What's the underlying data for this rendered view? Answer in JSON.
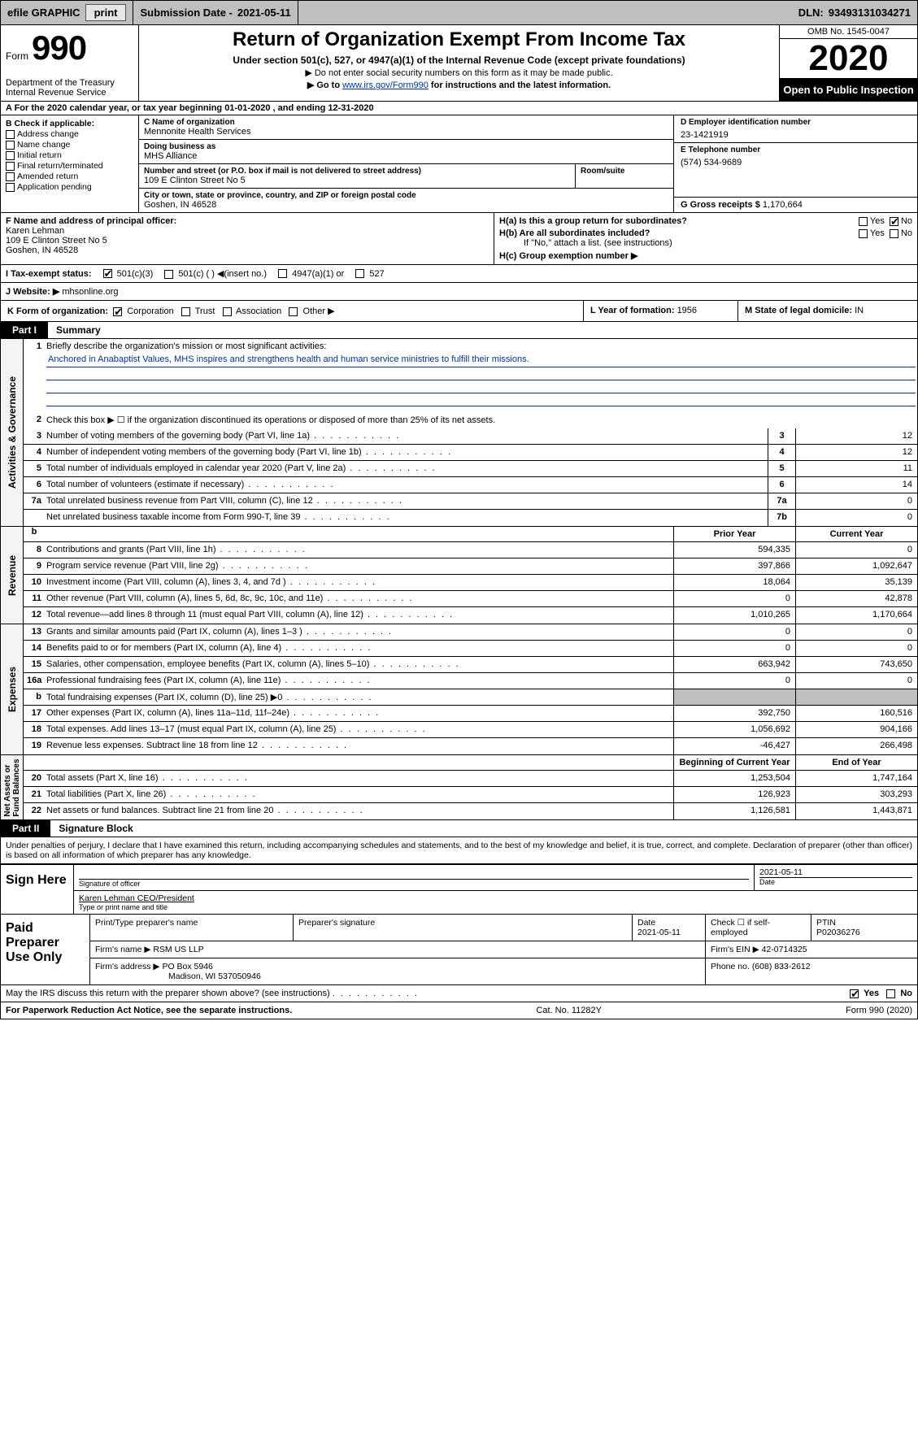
{
  "topbar": {
    "efile": "efile GRAPHIC",
    "print": "print",
    "subdate_label": "Submission Date - ",
    "subdate": "2021-05-11",
    "dln_label": "DLN: ",
    "dln": "93493131034271"
  },
  "header": {
    "form_small": "Form",
    "form_big": "990",
    "dept": "Department of the Treasury\nInternal Revenue Service",
    "title": "Return of Organization Exempt From Income Tax",
    "subtitle": "Under section 501(c), 527, or 4947(a)(1) of the Internal Revenue Code (except private foundations)",
    "note1": "▶ Do not enter social security numbers on this form as it may be made public.",
    "note2_pre": "▶ Go to ",
    "note2_link": "www.irs.gov/Form990",
    "note2_post": " for instructions and the latest information.",
    "omb": "OMB No. 1545-0047",
    "year": "2020",
    "inspection": "Open to Public Inspection"
  },
  "rowA": "A   For the 2020 calendar year, or tax year beginning 01-01-2020   , and ending 12-31-2020",
  "boxB": {
    "header": "B Check if applicable:",
    "items": [
      "Address change",
      "Name change",
      "Initial return",
      "Final return/terminated",
      "Amended return",
      "Application pending"
    ]
  },
  "boxC": {
    "name_label": "C Name of organization",
    "name": "Mennonite Health Services",
    "dba_label": "Doing business as",
    "dba": "MHS Alliance",
    "addr_label": "Number and street (or P.O. box if mail is not delivered to street address)",
    "addr": "109 E Clinton Street No 5",
    "room_label": "Room/suite",
    "city_label": "City or town, state or province, country, and ZIP or foreign postal code",
    "city": "Goshen, IN  46528"
  },
  "boxD": {
    "ein_label": "D Employer identification number",
    "ein": "23-1421919",
    "phone_label": "E Telephone number",
    "phone": "(574) 534-9689",
    "gross_label": "G Gross receipts $ ",
    "gross": "1,170,664"
  },
  "boxF": {
    "label": "F  Name and address of principal officer:",
    "name": "Karen Lehman",
    "addr1": "109 E Clinton Street No 5",
    "addr2": "Goshen, IN  46528"
  },
  "boxH": {
    "a": "H(a)  Is this a group return for subordinates?",
    "b": "H(b)  Are all subordinates included?",
    "b_note": "If \"No,\" attach a list. (see instructions)",
    "c": "H(c)  Group exemption number ▶"
  },
  "boxI": {
    "label": "I   Tax-exempt status:",
    "opts": [
      "501(c)(3)",
      "501(c) (   ) ◀(insert no.)",
      "4947(a)(1) or",
      "527"
    ]
  },
  "boxJ": {
    "label": "J   Website: ▶ ",
    "value": "mhsonline.org"
  },
  "boxK": {
    "label": "K Form of organization:",
    "opts": [
      "Corporation",
      "Trust",
      "Association",
      "Other ▶"
    ]
  },
  "boxL": {
    "label": "L Year of formation: ",
    "value": "1956"
  },
  "boxM": {
    "label": "M State of legal domicile: ",
    "value": "IN"
  },
  "part1": {
    "tab": "Part I",
    "title": "Summary"
  },
  "summary": {
    "q1": "Briefly describe the organization's mission or most significant activities:",
    "mission": "Anchored in Anabaptist Values, MHS inspires and strengthens health and human service ministries to fulfill their missions.",
    "q2": "Check this box ▶ ☐  if the organization discontinued its operations or disposed of more than 25% of its net assets.",
    "lines_gov": [
      {
        "n": "3",
        "t": "Number of voting members of the governing body (Part VI, line 1a)",
        "b": "3",
        "v": "12"
      },
      {
        "n": "4",
        "t": "Number of independent voting members of the governing body (Part VI, line 1b)",
        "b": "4",
        "v": "12"
      },
      {
        "n": "5",
        "t": "Total number of individuals employed in calendar year 2020 (Part V, line 2a)",
        "b": "5",
        "v": "11"
      },
      {
        "n": "6",
        "t": "Total number of volunteers (estimate if necessary)",
        "b": "6",
        "v": "14"
      },
      {
        "n": "7a",
        "t": "Total unrelated business revenue from Part VIII, column (C), line 12",
        "b": "7a",
        "v": "0"
      },
      {
        "n": "",
        "t": "Net unrelated business taxable income from Form 990-T, line 39",
        "b": "7b",
        "v": "0"
      }
    ],
    "head_prior": "Prior Year",
    "head_current": "Current Year",
    "revenue": [
      {
        "n": "8",
        "t": "Contributions and grants (Part VIII, line 1h)",
        "p": "594,335",
        "c": "0"
      },
      {
        "n": "9",
        "t": "Program service revenue (Part VIII, line 2g)",
        "p": "397,866",
        "c": "1,092,647"
      },
      {
        "n": "10",
        "t": "Investment income (Part VIII, column (A), lines 3, 4, and 7d )",
        "p": "18,064",
        "c": "35,139"
      },
      {
        "n": "11",
        "t": "Other revenue (Part VIII, column (A), lines 5, 6d, 8c, 9c, 10c, and 11e)",
        "p": "0",
        "c": "42,878"
      },
      {
        "n": "12",
        "t": "Total revenue—add lines 8 through 11 (must equal Part VIII, column (A), line 12)",
        "p": "1,010,265",
        "c": "1,170,664"
      }
    ],
    "expenses": [
      {
        "n": "13",
        "t": "Grants and similar amounts paid (Part IX, column (A), lines 1–3 )",
        "p": "0",
        "c": "0"
      },
      {
        "n": "14",
        "t": "Benefits paid to or for members (Part IX, column (A), line 4)",
        "p": "0",
        "c": "0"
      },
      {
        "n": "15",
        "t": "Salaries, other compensation, employee benefits (Part IX, column (A), lines 5–10)",
        "p": "663,942",
        "c": "743,650"
      },
      {
        "n": "16a",
        "t": "Professional fundraising fees (Part IX, column (A), line 11e)",
        "p": "0",
        "c": "0"
      },
      {
        "n": "b",
        "t": "Total fundraising expenses (Part IX, column (D), line 25) ▶0",
        "p": "",
        "c": "",
        "shade": true
      },
      {
        "n": "17",
        "t": "Other expenses (Part IX, column (A), lines 11a–11d, 11f–24e)",
        "p": "392,750",
        "c": "160,516"
      },
      {
        "n": "18",
        "t": "Total expenses. Add lines 13–17 (must equal Part IX, column (A), line 25)",
        "p": "1,056,692",
        "c": "904,166"
      },
      {
        "n": "19",
        "t": "Revenue less expenses. Subtract line 18 from line 12",
        "p": "-46,427",
        "c": "266,498"
      }
    ],
    "head_begin": "Beginning of Current Year",
    "head_end": "End of Year",
    "netassets": [
      {
        "n": "20",
        "t": "Total assets (Part X, line 16)",
        "p": "1,253,504",
        "c": "1,747,164"
      },
      {
        "n": "21",
        "t": "Total liabilities (Part X, line 26)",
        "p": "126,923",
        "c": "303,293"
      },
      {
        "n": "22",
        "t": "Net assets or fund balances. Subtract line 21 from line 20",
        "p": "1,126,581",
        "c": "1,443,871"
      }
    ]
  },
  "part2": {
    "tab": "Part II",
    "title": "Signature Block"
  },
  "perjury": "Under penalties of perjury, I declare that I have examined this return, including accompanying schedules and statements, and to the best of my knowledge and belief, it is true, correct, and complete. Declaration of preparer (other than officer) is based on all information of which preparer has any knowledge.",
  "sign": {
    "label": "Sign Here",
    "sig_lab": "Signature of officer",
    "date": "2021-05-11",
    "date_lab": "Date",
    "name": "Karen Lehman CEO/President",
    "name_lab": "Type or print name and title"
  },
  "paid": {
    "label": "Paid Preparer Use Only",
    "h_name": "Print/Type preparer's name",
    "h_sig": "Preparer's signature",
    "h_date": "Date",
    "date": "2021-05-11",
    "check_lab": "Check ☐ if self-employed",
    "ptin_lab": "PTIN",
    "ptin": "P02036276",
    "firm_name_lab": "Firm's name    ▶",
    "firm_name": "RSM US LLP",
    "firm_ein_lab": "Firm's EIN ▶",
    "firm_ein": "42-0714325",
    "firm_addr_lab": "Firm's address ▶",
    "firm_addr1": "PO Box 5946",
    "firm_addr2": "Madison, WI  537050946",
    "phone_lab": "Phone no.",
    "phone": "(608) 833-2612"
  },
  "discuss": {
    "q": "May the IRS discuss this return with the preparer shown above? (see instructions)",
    "yes": "Yes",
    "no": "No"
  },
  "footer": {
    "left": "For Paperwork Reduction Act Notice, see the separate instructions.",
    "mid": "Cat. No. 11282Y",
    "right": "Form 990 (2020)"
  }
}
